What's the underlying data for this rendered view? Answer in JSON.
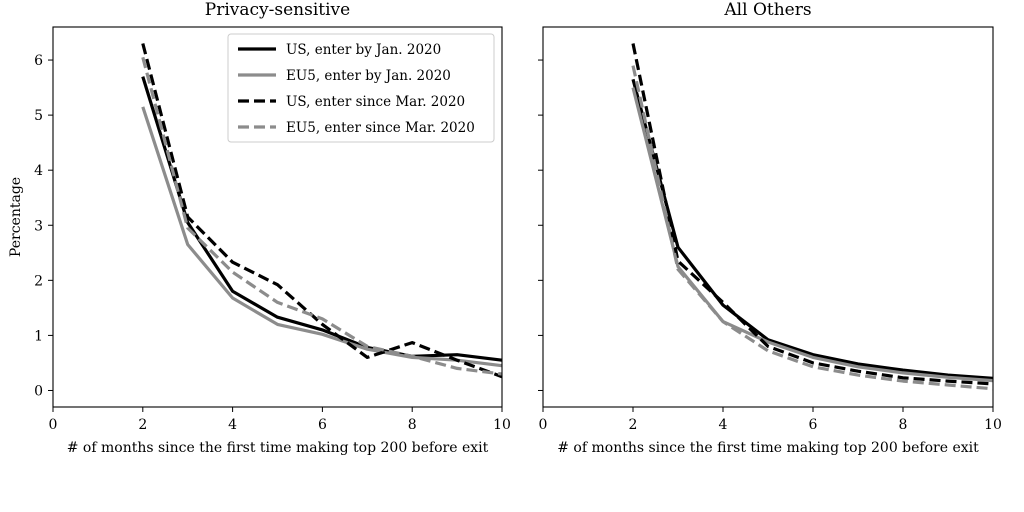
{
  "chart_data": [
    {
      "type": "line",
      "title": "Privacy-sensitive",
      "xlabel": "# of months since the first time making top 200 before exit",
      "ylabel": "Percentage",
      "xlim": [
        0,
        10
      ],
      "ylim": [
        -0.3,
        6.6
      ],
      "xticks": [
        0,
        2,
        4,
        6,
        8,
        10
      ],
      "yticks": [
        0,
        1,
        2,
        3,
        4,
        5,
        6
      ],
      "grid": false,
      "legend": "top-right",
      "series": [
        {
          "name": "US, enter by Jan. 2020",
          "color": "#000000",
          "dash": "solid",
          "x": [
            2,
            3,
            4,
            5,
            6,
            7,
            8,
            9,
            10
          ],
          "y": [
            5.7,
            3.05,
            1.8,
            1.33,
            1.1,
            0.78,
            0.62,
            0.65,
            0.55
          ]
        },
        {
          "name": "EU5, enter by Jan. 2020",
          "color": "#8c8c8c",
          "dash": "solid",
          "x": [
            2,
            3,
            4,
            5,
            6,
            7,
            8,
            9,
            10
          ],
          "y": [
            5.15,
            2.65,
            1.68,
            1.2,
            1.02,
            0.75,
            0.6,
            0.55,
            0.45
          ]
        },
        {
          "name": "US, enter since Mar. 2020",
          "color": "#000000",
          "dash": "dashed",
          "x": [
            2,
            3,
            4,
            5,
            6,
            7,
            8,
            9,
            10
          ],
          "y": [
            6.3,
            3.15,
            2.33,
            1.92,
            1.2,
            0.6,
            0.87,
            0.55,
            0.25
          ]
        },
        {
          "name": "EU5, enter since Mar. 2020",
          "color": "#8c8c8c",
          "dash": "dashed",
          "x": [
            2,
            3,
            4,
            5,
            6,
            7,
            8,
            9,
            10
          ],
          "y": [
            6.05,
            2.95,
            2.15,
            1.6,
            1.3,
            0.8,
            0.62,
            0.4,
            0.3
          ]
        }
      ]
    },
    {
      "type": "line",
      "title": "All Others",
      "xlabel": "# of months since the first time making top 200 before exit",
      "ylabel": "",
      "xlim": [
        0,
        10
      ],
      "ylim": [
        -0.3,
        6.6
      ],
      "xticks": [
        0,
        2,
        4,
        6,
        8,
        10
      ],
      "yticks": [
        0,
        1,
        2,
        3,
        4,
        5,
        6
      ],
      "grid": false,
      "series": [
        {
          "name": "US, enter by Jan. 2020",
          "color": "#000000",
          "dash": "solid",
          "x": [
            2,
            3,
            4,
            5,
            6,
            7,
            8,
            9,
            10
          ],
          "y": [
            5.65,
            2.6,
            1.55,
            0.92,
            0.65,
            0.48,
            0.37,
            0.28,
            0.22
          ]
        },
        {
          "name": "EU5, enter by Jan. 2020",
          "color": "#8c8c8c",
          "dash": "solid",
          "x": [
            2,
            3,
            4,
            5,
            6,
            7,
            8,
            9,
            10
          ],
          "y": [
            5.5,
            2.25,
            1.25,
            0.88,
            0.6,
            0.43,
            0.32,
            0.24,
            0.18
          ]
        },
        {
          "name": "US, enter since Mar. 2020",
          "color": "#000000",
          "dash": "dashed",
          "x": [
            2,
            3,
            4,
            5,
            6,
            7,
            8,
            9,
            10
          ],
          "y": [
            6.3,
            2.35,
            1.6,
            0.8,
            0.5,
            0.35,
            0.23,
            0.17,
            0.12
          ]
        },
        {
          "name": "EU5, enter since Mar. 2020",
          "color": "#8c8c8c",
          "dash": "dashed",
          "x": [
            2,
            3,
            4,
            5,
            6,
            7,
            8,
            9,
            10
          ],
          "y": [
            5.9,
            2.2,
            1.25,
            0.72,
            0.43,
            0.28,
            0.17,
            0.1,
            0.03
          ]
        }
      ]
    }
  ]
}
